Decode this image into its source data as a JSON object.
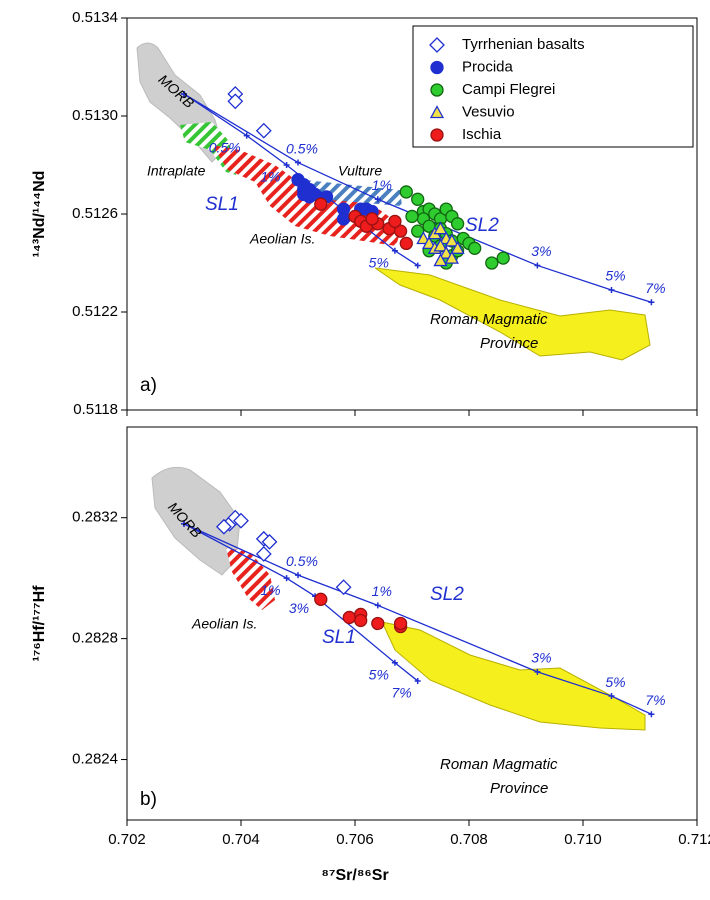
{
  "chart_data": [
    {
      "type": "scatter",
      "ylabel": "¹⁴³Nd/¹⁴⁴Nd",
      "xlim": [
        0.702,
        0.712
      ],
      "xticks": [
        0.702,
        0.704,
        0.706,
        0.708,
        0.71,
        0.712
      ],
      "ylim": [
        0.5118,
        0.5134
      ],
      "yticks": [
        0.5118,
        0.5122,
        0.5126,
        {
          "value": 0.513,
          "label": "0.5130"
        },
        0.5134
      ],
      "legend": "upper right",
      "series": [
        {
          "name": "Tyrrhenian basalts",
          "marker": "diamond",
          "color": "#1f2fd0",
          "fill": "#ffffff",
          "x": [
            0.7039,
            0.7039,
            0.7044
          ],
          "values": [
            0.51309,
            0.51306,
            0.51294
          ]
        },
        {
          "name": "Procida",
          "marker": "circle",
          "color": "#1f2fd0",
          "fill": "#1f2fd0",
          "x": [
            0.705,
            0.7051,
            0.7051,
            0.7051,
            0.7052,
            0.7052,
            0.7053,
            0.7055,
            0.7058,
            0.7058,
            0.7061,
            0.7062,
            0.7063
          ],
          "values": [
            0.51274,
            0.51272,
            0.5127,
            0.51268,
            0.5127,
            0.51267,
            0.51268,
            0.51267,
            0.51262,
            0.51258,
            0.51262,
            0.51262,
            0.51261
          ]
        },
        {
          "name": "Campi Flegrei",
          "marker": "circle",
          "color": "#116611",
          "fill": "#2ecc2e",
          "x": [
            0.7069,
            0.7071,
            0.7072,
            0.7073,
            0.7074,
            0.7072,
            0.7075,
            0.7076,
            0.7077,
            0.7073,
            0.7075,
            0.7078,
            0.7071,
            0.7074,
            0.7076,
            0.7077,
            0.7079,
            0.708,
            0.707,
            0.7073,
            0.7075,
            0.7077,
            0.7081,
            0.7084,
            0.7086,
            0.7076,
            0.7078
          ],
          "values": [
            0.51269,
            0.51266,
            0.51261,
            0.51262,
            0.5126,
            0.51258,
            0.51258,
            0.51262,
            0.51259,
            0.51255,
            0.51254,
            0.51256,
            0.51253,
            0.51251,
            0.51252,
            0.51249,
            0.5125,
            0.51248,
            0.51259,
            0.51245,
            0.51247,
            0.51243,
            0.51246,
            0.5124,
            0.51242,
            0.5124,
            0.51245
          ]
        },
        {
          "name": "Vesuvio",
          "marker": "triangle",
          "color": "#1f2fd0",
          "fill": "#f2e24a",
          "x": [
            0.7072,
            0.7073,
            0.7074,
            0.7075,
            0.7076,
            0.7074,
            0.7075,
            0.7077,
            0.7076,
            0.7078,
            0.7075,
            0.7077
          ],
          "values": [
            0.5125,
            0.51248,
            0.51252,
            0.51254,
            0.5125,
            0.51246,
            0.51247,
            0.51249,
            0.51244,
            0.51246,
            0.51241,
            0.51242
          ]
        },
        {
          "name": "Ischia",
          "marker": "circle",
          "color": "#991111",
          "fill": "#ee1c1c",
          "x": [
            0.7054,
            0.706,
            0.7061,
            0.7062,
            0.7064,
            0.7066,
            0.7068,
            0.7069,
            0.7063,
            0.7067
          ],
          "values": [
            0.51264,
            0.51259,
            0.51257,
            0.51255,
            0.51256,
            0.51254,
            0.51253,
            0.51248,
            0.51258,
            0.51257
          ]
        }
      ],
      "mixing_lines": [
        {
          "name": "SL1",
          "color": "#1f2fd0",
          "x": [
            0.703,
            0.7041,
            0.7048,
            0.7067,
            0.7071
          ],
          "values": [
            0.51309,
            0.51292,
            0.5128,
            0.51245,
            0.51239
          ],
          "labels": [
            null,
            "0.5%",
            "1%",
            "5%",
            null
          ]
        },
        {
          "name": "SL2",
          "color": "#1f2fd0",
          "x": [
            0.703,
            0.705,
            0.7064,
            0.7092,
            0.7105,
            0.7112
          ],
          "values": [
            0.51309,
            0.51281,
            0.51266,
            0.51239,
            0.51229,
            0.51224
          ],
          "labels": [
            null,
            "0.5%",
            "1%",
            "3%",
            "5%",
            "7%"
          ]
        }
      ],
      "annotations": {
        "morb": "MORB",
        "intraplate": "Intraplate",
        "vulture": "Vulture",
        "aeolian": "Aeolian Is.",
        "roman": [
          "Roman Magmatic",
          "Province"
        ],
        "panel": "a)"
      }
    },
    {
      "type": "scatter",
      "ylabel": "¹⁷⁶Hf/¹⁷⁷Hf",
      "xlabel": "⁸⁷Sr/⁸⁶Sr",
      "xlim": [
        0.702,
        0.712
      ],
      "xticks": [
        0.702,
        0.704,
        0.706,
        0.708,
        {
          "value": 0.71,
          "label": "0.710"
        },
        0.712
      ],
      "ylim": [
        0.2822,
        0.2835
      ],
      "yticks": [
        0.2824,
        0.2828,
        0.2832
      ],
      "series": [
        {
          "marker": "diamond",
          "color": "#1f2fd0",
          "fill": "#ffffff",
          "x": [
            0.7038,
            0.7039,
            0.704,
            0.7037,
            0.7044,
            0.7045,
            0.7044,
            0.7058
          ],
          "values": [
            0.28318,
            0.2832,
            0.28319,
            0.28317,
            0.28313,
            0.28312,
            0.28308,
            0.28297
          ]
        },
        {
          "marker": "circle",
          "color": "#991111",
          "fill": "#ee1c1c",
          "x": [
            0.7054,
            0.7059,
            0.7061,
            0.7061,
            0.7064,
            0.7068,
            0.7068
          ],
          "values": [
            0.28293,
            0.28287,
            0.28288,
            0.28286,
            0.28285,
            0.28284,
            0.28285
          ]
        }
      ],
      "mixing_lines": [
        {
          "name": "SL1",
          "color": "#1f2fd0",
          "x": [
            0.703,
            0.7048,
            0.7053,
            0.7067,
            0.7071
          ],
          "values": [
            0.28318,
            0.283,
            0.28294,
            0.28272,
            0.28266
          ],
          "labels": [
            null,
            "1%",
            "3%",
            "5%",
            "7%"
          ]
        },
        {
          "name": "SL2",
          "color": "#1f2fd0",
          "x": [
            0.703,
            0.705,
            0.7064,
            0.7092,
            0.7105,
            0.7112
          ],
          "values": [
            0.28318,
            0.28301,
            0.28291,
            0.28269,
            0.28261,
            0.28255
          ],
          "labels": [
            null,
            "0.5%",
            "1%",
            "3%",
            "5%",
            "7%"
          ]
        }
      ],
      "annotations": {
        "morb": "MORB",
        "aeolian": "Aeolian Is.",
        "roman": [
          "Roman Magmatic",
          "Province"
        ],
        "panel": "b)"
      }
    }
  ]
}
